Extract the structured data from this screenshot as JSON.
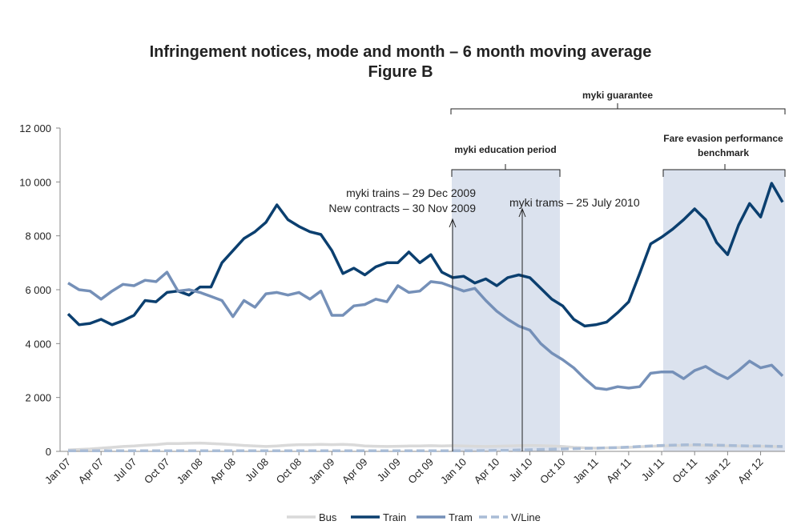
{
  "chart_data": {
    "type": "line",
    "title": "Figure B",
    "subtitle": "Infringement notices, mode and month – 6 month moving average",
    "categories": [
      "Jan 07",
      null,
      null,
      "Apr 07",
      null,
      null,
      "Jul 07",
      null,
      null,
      "Oct 07",
      null,
      null,
      "Jan 08",
      null,
      null,
      "Apr 08",
      null,
      null,
      "Jul 08",
      null,
      null,
      "Oct 08",
      null,
      null,
      "Jan 09",
      null,
      null,
      "Apr 09",
      null,
      null,
      "Jul 09",
      null,
      null,
      "Oct 09",
      null,
      null,
      "Jan 10",
      null,
      null,
      "Apr 10",
      null,
      null,
      "Jul 10",
      null,
      null,
      "Oct 10",
      null,
      null,
      "Jan 11",
      null,
      null,
      "Apr 11",
      null,
      null,
      "Jul 11",
      null,
      null,
      "Oct 11",
      null,
      null,
      "Jan 12",
      null,
      null,
      "Apr 12",
      null,
      null
    ],
    "series": [
      {
        "name": "Bus",
        "color": "#d9d9d9",
        "dashed": false,
        "values": [
          50,
          70,
          90,
          120,
          150,
          180,
          200,
          230,
          250,
          290,
          290,
          300,
          310,
          290,
          270,
          250,
          220,
          200,
          180,
          200,
          230,
          250,
          250,
          260,
          250,
          260,
          240,
          200,
          190,
          180,
          190,
          200,
          200,
          210,
          200,
          210,
          200,
          190,
          180,
          190,
          200,
          210,
          220,
          210,
          200,
          180,
          150,
          130,
          120,
          130,
          140,
          150,
          170,
          190,
          200,
          210,
          220,
          230,
          220,
          210,
          200,
          200,
          190,
          190,
          180,
          170
        ]
      },
      {
        "name": "Train",
        "color": "#0b3f6f",
        "dashed": false,
        "values": [
          5100,
          4700,
          4750,
          4900,
          4700,
          4850,
          5050,
          5600,
          5550,
          5900,
          5950,
          5800,
          6100,
          6100,
          7000,
          7450,
          7900,
          8150,
          8500,
          9150,
          8600,
          8350,
          8150,
          8050,
          7450,
          6600,
          6800,
          6550,
          6850,
          7000,
          7000,
          7400,
          7000,
          7300,
          6650,
          6450,
          6500,
          6250,
          6400,
          6150,
          6450,
          6550,
          6450,
          6050,
          5650,
          5400,
          4900,
          4650,
          4700,
          4800,
          5150,
          5550,
          6600,
          7700,
          7950,
          8250,
          8600,
          9000,
          8600,
          7750,
          7300,
          8400,
          9200,
          8700,
          9950,
          9250
        ]
      },
      {
        "name": "Tram",
        "color": "#7590b8",
        "dashed": false,
        "values": [
          6250,
          6000,
          5950,
          5650,
          5950,
          6200,
          6150,
          6350,
          6300,
          6650,
          5950,
          6000,
          5900,
          5750,
          5600,
          5000,
          5600,
          5350,
          5850,
          5900,
          5800,
          5900,
          5650,
          5950,
          5050,
          5050,
          5400,
          5450,
          5650,
          5550,
          6150,
          5900,
          5950,
          6300,
          6250,
          6100,
          5950,
          6050,
          5600,
          5200,
          4900,
          4650,
          4500,
          4000,
          3650,
          3400,
          3100,
          2700,
          2350,
          2300,
          2400,
          2350,
          2400,
          2900,
          2950,
          2950,
          2700,
          3000,
          3150,
          2900,
          2700,
          3000,
          3350,
          3100,
          3200,
          2800
        ]
      },
      {
        "name": "V/Line",
        "color": "#a9bcd6",
        "dashed": true,
        "values": [
          20,
          20,
          20,
          20,
          20,
          20,
          20,
          20,
          20,
          20,
          20,
          20,
          20,
          20,
          20,
          20,
          20,
          20,
          20,
          20,
          20,
          20,
          20,
          20,
          20,
          20,
          20,
          20,
          20,
          20,
          20,
          20,
          20,
          20,
          20,
          20,
          20,
          25,
          30,
          35,
          40,
          50,
          60,
          70,
          80,
          90,
          100,
          110,
          120,
          130,
          140,
          160,
          180,
          200,
          220,
          230,
          240,
          250,
          240,
          230,
          220,
          210,
          200,
          200,
          190,
          180
        ]
      }
    ],
    "ylim": [
      0,
      12000
    ],
    "yticks": [
      0,
      {
        "value": 2000,
        "label": "2 000"
      },
      {
        "value": 4000,
        "label": "4 000"
      },
      {
        "value": 6000,
        "label": "6 000"
      },
      {
        "value": 8000,
        "label": "8 000"
      },
      {
        "value": 10000,
        "label": "10 000"
      },
      {
        "value": 12000,
        "label": "12 000"
      }
    ],
    "grid": false,
    "legend": "bottom",
    "annotations": {
      "guarantee": "myki guarantee",
      "education": "myki education period",
      "benchmark": [
        "Fare evasion performance",
        "benchmark"
      ],
      "trains": "myki trains – 29 Dec 2009",
      "contracts": "New contracts – 30 Nov 2009",
      "trams": "myki trams – 25 July 2010"
    }
  }
}
